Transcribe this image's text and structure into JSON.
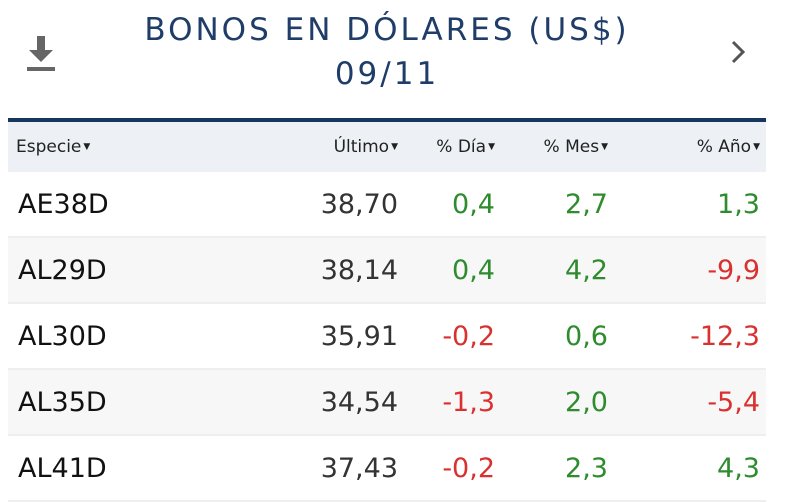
{
  "header": {
    "title_line1": "BONOS EN DÓLARES (US$)",
    "title_line2": "09/11",
    "download_icon": "download-icon",
    "next_icon": "chevron-right-icon"
  },
  "columns": [
    {
      "label": "Especie"
    },
    {
      "label": "Último"
    },
    {
      "label": "% Día"
    },
    {
      "label": "% Mes"
    },
    {
      "label": "% Año"
    }
  ],
  "rows": [
    {
      "ticker": "AE38D",
      "last": "38,70",
      "day": "0,4",
      "month": "2,7",
      "year": "1,3"
    },
    {
      "ticker": "AL29D",
      "last": "38,14",
      "day": "0,4",
      "month": "4,2",
      "year": "-9,9"
    },
    {
      "ticker": "AL30D",
      "last": "35,91",
      "day": "-0,2",
      "month": "0,6",
      "year": "-12,3"
    },
    {
      "ticker": "AL35D",
      "last": "34,54",
      "day": "-1,3",
      "month": "2,0",
      "year": "-5,4"
    },
    {
      "ticker": "AL41D",
      "last": "37,43",
      "day": "-0,2",
      "month": "2,3",
      "year": "4,3"
    }
  ],
  "colors": {
    "title": "#1f3d68",
    "header_rule": "#17365d",
    "positive": "#2e8b2e",
    "negative": "#d93030",
    "header_bg": "#edf0f4"
  }
}
